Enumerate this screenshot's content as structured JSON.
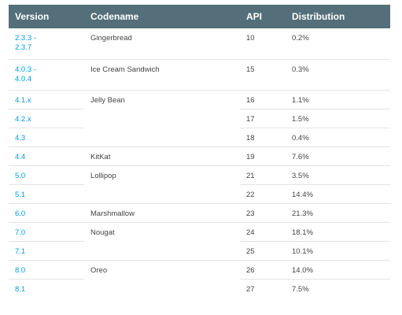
{
  "table": {
    "headers": {
      "version": "Version",
      "codename": "Codename",
      "api": "API",
      "distribution": "Distribution"
    },
    "rows": [
      {
        "version": "2.3.3 -\n2.3.7",
        "codename": "Gingerbread",
        "api": "10",
        "distribution": "0.2%"
      },
      {
        "version": "4.0.3 -\n4.0.4",
        "codename": "Ice Cream Sandwich",
        "api": "15",
        "distribution": "0.3%"
      },
      {
        "version": "4.1.x",
        "codename": "Jelly Bean",
        "api": "16",
        "distribution": "1.1%"
      },
      {
        "version": "4.2.x",
        "codename": "",
        "api": "17",
        "distribution": "1.5%"
      },
      {
        "version": "4.3",
        "codename": "",
        "api": "18",
        "distribution": "0.4%"
      },
      {
        "version": "4.4",
        "codename": "KitKat",
        "api": "19",
        "distribution": "7.6%"
      },
      {
        "version": "5.0",
        "codename": "Lollipop",
        "api": "21",
        "distribution": "3.5%"
      },
      {
        "version": "5.1",
        "codename": "",
        "api": "22",
        "distribution": "14.4%"
      },
      {
        "version": "6.0",
        "codename": "Marshmallow",
        "api": "23",
        "distribution": "21.3%"
      },
      {
        "version": "7.0",
        "codename": "Nougat",
        "api": "24",
        "distribution": "18.1%"
      },
      {
        "version": "7.1",
        "codename": "",
        "api": "25",
        "distribution": "10.1%"
      },
      {
        "version": "8.0",
        "codename": "Oreo",
        "api": "26",
        "distribution": "14.0%"
      },
      {
        "version": "8.1",
        "codename": "",
        "api": "27",
        "distribution": "7.5%"
      }
    ]
  },
  "colors": {
    "header_bg": "#546e7a",
    "header_text": "#ffffff",
    "link": "#039be5",
    "body_text": "#444444",
    "row_border": "#e3e3e3"
  }
}
